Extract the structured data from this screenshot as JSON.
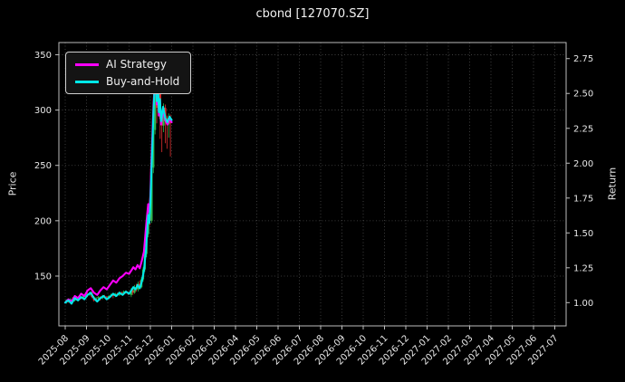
{
  "title": "cbond [127070.SZ]",
  "legend": {
    "items": [
      {
        "label": "AI Strategy",
        "color": "#ff00ff"
      },
      {
        "label": "Buy-and-Hold",
        "color": "#00e8e8"
      }
    ]
  },
  "axes": {
    "left": {
      "label": "Price",
      "ticks": [
        150,
        200,
        250,
        300,
        350
      ]
    },
    "right": {
      "label": "Return",
      "tick_labels": [
        "1.00",
        "1.25",
        "1.50",
        "1.75",
        "2.00",
        "2.25",
        "2.50",
        "2.75"
      ],
      "base_price": 126
    }
  },
  "chart_data": {
    "type": "line",
    "title": "cbond [127070.SZ]",
    "xlabel": "",
    "ylabel": "Price",
    "ylabel_right": "Return",
    "x_unit": "months since 2025-08",
    "grid": true,
    "legend_position": "upper left",
    "ylim_price": [
      105,
      361
    ],
    "return_axis_base_price": 126,
    "colors": {
      "background": "#000000",
      "grid": "#4a4a4a",
      "text": "#e8e8e8",
      "spine": "#bdbdbd"
    },
    "x_tick_labels": [
      "2025-08",
      "2025-09",
      "2025-10",
      "2025-11",
      "2025-12",
      "2026-01",
      "2026-02",
      "2026-03",
      "2026-04",
      "2026-05",
      "2026-06",
      "2026-07",
      "2026-08",
      "2026-09",
      "2026-10",
      "2026-11",
      "2026-12",
      "2027-01",
      "2027-02",
      "2027-03",
      "2027-04",
      "2027-05",
      "2027-06",
      "2027-07"
    ],
    "series_x": [
      0,
      0.15,
      0.3,
      0.45,
      0.6,
      0.75,
      0.9,
      1.05,
      1.2,
      1.35,
      1.5,
      1.65,
      1.8,
      1.95,
      2.1,
      2.25,
      2.4,
      2.55,
      2.7,
      2.85,
      3.0,
      3.1,
      3.2,
      3.3,
      3.4,
      3.5,
      3.6,
      3.7,
      3.8,
      3.9,
      3.95,
      4.0,
      4.05,
      4.1,
      4.15,
      4.2,
      4.25,
      4.3,
      4.35,
      4.4,
      4.45,
      4.5,
      4.6,
      4.7,
      4.8,
      4.9,
      5.0
    ],
    "series": [
      {
        "name": "AI Strategy",
        "color": "#ff00ff",
        "y_price": [
          126,
          129,
          127,
          132,
          130,
          134,
          132,
          137,
          139,
          135,
          133,
          137,
          140,
          138,
          142,
          146,
          144,
          148,
          150,
          153,
          152,
          155,
          158,
          156,
          160,
          157,
          164,
          172,
          195,
          215,
          208,
          222,
          255,
          278,
          305,
          322,
          336,
          305,
          327,
          295,
          308,
          287,
          300,
          291,
          287,
          292,
          289
        ]
      },
      {
        "name": "Buy-and-Hold",
        "color": "#00e8e8",
        "y_price": [
          126,
          128,
          125,
          130,
          128,
          131,
          129,
          133,
          135,
          130,
          127,
          130,
          132,
          129,
          131,
          134,
          132,
          135,
          133,
          136,
          134,
          137,
          140,
          138,
          142,
          139,
          145,
          155,
          175,
          205,
          198,
          215,
          245,
          270,
          300,
          320,
          340,
          308,
          330,
          298,
          310,
          290,
          303,
          293,
          289,
          294,
          291
        ]
      }
    ],
    "candle_colors": {
      "up": "#2db84d",
      "down": "#e03030"
    },
    "candles_format": [
      "x",
      "open",
      "high",
      "low",
      "close"
    ],
    "candles": [
      [
        0.05,
        126,
        129,
        125,
        128
      ],
      [
        0.15,
        128,
        129,
        126,
        127
      ],
      [
        0.25,
        127,
        130,
        126,
        129
      ],
      [
        0.35,
        129,
        131,
        127,
        128
      ],
      [
        0.45,
        128,
        131,
        127,
        130
      ],
      [
        0.55,
        130,
        131,
        128,
        129
      ],
      [
        0.65,
        129,
        132,
        128,
        131
      ],
      [
        0.75,
        131,
        132,
        129,
        130
      ],
      [
        0.85,
        130,
        133,
        129,
        132
      ],
      [
        0.95,
        132,
        135,
        131,
        134
      ],
      [
        1.05,
        134,
        135,
        131,
        133
      ],
      [
        1.15,
        133,
        136,
        132,
        135
      ],
      [
        1.25,
        135,
        136,
        130,
        131
      ],
      [
        1.35,
        131,
        132,
        127,
        128
      ],
      [
        1.45,
        128,
        131,
        127,
        130
      ],
      [
        1.55,
        130,
        132,
        129,
        131
      ],
      [
        1.65,
        131,
        132,
        128,
        130
      ],
      [
        1.75,
        130,
        133,
        129,
        132
      ],
      [
        1.85,
        132,
        133,
        130,
        131
      ],
      [
        1.95,
        131,
        132,
        129,
        130
      ],
      [
        2.05,
        130,
        133,
        129,
        132
      ],
      [
        2.15,
        132,
        134,
        131,
        133
      ],
      [
        2.25,
        133,
        134,
        130,
        132
      ],
      [
        2.35,
        132,
        135,
        131,
        134
      ],
      [
        2.45,
        134,
        135,
        132,
        133
      ],
      [
        2.55,
        133,
        136,
        132,
        135
      ],
      [
        2.65,
        135,
        136,
        133,
        134
      ],
      [
        2.75,
        134,
        137,
        133,
        136
      ],
      [
        2.85,
        136,
        137,
        134,
        135
      ],
      [
        2.95,
        135,
        136,
        133,
        134
      ],
      [
        3.1,
        133,
        139,
        131,
        137
      ],
      [
        3.18,
        137,
        140,
        133,
        135
      ],
      [
        3.26,
        135,
        142,
        134,
        140
      ],
      [
        3.34,
        140,
        143,
        136,
        138
      ],
      [
        3.42,
        138,
        145,
        136,
        143
      ],
      [
        3.5,
        143,
        146,
        138,
        140
      ],
      [
        3.58,
        140,
        149,
        139,
        147
      ],
      [
        3.66,
        147,
        158,
        145,
        156
      ],
      [
        3.74,
        156,
        174,
        154,
        170
      ],
      [
        3.82,
        170,
        192,
        167,
        188
      ],
      [
        3.9,
        188,
        212,
        185,
        207
      ],
      [
        3.98,
        207,
        214,
        196,
        200
      ],
      [
        4.06,
        200,
        252,
        198,
        248
      ],
      [
        4.14,
        248,
        295,
        243,
        282
      ],
      [
        4.22,
        282,
        345,
        278,
        325
      ],
      [
        4.3,
        325,
        338,
        288,
        302
      ],
      [
        4.38,
        302,
        333,
        296,
        326
      ],
      [
        4.46,
        326,
        329,
        274,
        292
      ],
      [
        4.54,
        292,
        298,
        262,
        286
      ],
      [
        4.62,
        286,
        306,
        280,
        302
      ],
      [
        4.7,
        302,
        305,
        270,
        290
      ],
      [
        4.78,
        290,
        295,
        265,
        287
      ],
      [
        4.86,
        287,
        297,
        275,
        293
      ],
      [
        4.94,
        293,
        296,
        258,
        288
      ]
    ]
  }
}
